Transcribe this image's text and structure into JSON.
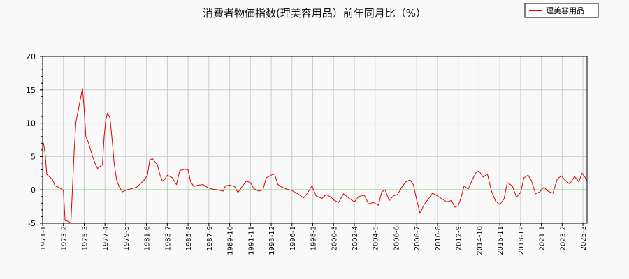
{
  "chart_data": {
    "type": "line",
    "title": "消費者物価指数(理美容用品）前年同月比（%）",
    "xlabel": "",
    "ylabel": "",
    "ylim": [
      -5,
      20
    ],
    "yticks": [
      -5,
      0,
      5,
      10,
      15,
      20
    ],
    "grid": true,
    "legend_position": "top-right",
    "x_tick_labels": [
      "1971-1",
      "1973-2",
      "1975-3",
      "1977-4",
      "1979-5",
      "1981-6",
      "1983-7",
      "1985-8",
      "1987-9",
      "1989-10",
      "1991-11",
      "1993-12",
      "1996-1",
      "1998-2",
      "2000-3",
      "2002-4",
      "2004-5",
      "2006-6",
      "2008-7",
      "2010-8",
      "2012-9",
      "2014-10",
      "2016-11",
      "2018-12",
      "2021-1",
      "2023-2",
      "2025-3"
    ],
    "x_range": [
      "1971-01",
      "2025-08"
    ],
    "reference_line": {
      "y": 0,
      "color": "#00cc00"
    },
    "series": [
      {
        "name": "理美容用品",
        "color": "#dd0000",
        "points": [
          [
            "1971-01",
            6.5
          ],
          [
            "1971-02",
            7.0
          ],
          [
            "1971-04",
            5.4
          ],
          [
            "1971-06",
            2.3
          ],
          [
            "1971-09",
            2.0
          ],
          [
            "1972-01",
            1.5
          ],
          [
            "1972-04",
            0.6
          ],
          [
            "1972-08",
            0.4
          ],
          [
            "1972-12",
            0.1
          ],
          [
            "1973-02",
            -0.1
          ],
          [
            "1973-04",
            -4.6
          ],
          [
            "1973-08",
            -4.7
          ],
          [
            "1973-11",
            -5.0
          ],
          [
            "1974-01",
            0.5
          ],
          [
            "1974-03",
            6.0
          ],
          [
            "1974-05",
            10.2
          ],
          [
            "1974-08",
            12.0
          ],
          [
            "1974-11",
            14.0
          ],
          [
            "1975-01",
            15.2
          ],
          [
            "1975-03",
            12.0
          ],
          [
            "1975-05",
            8.0
          ],
          [
            "1975-07",
            7.5
          ],
          [
            "1975-10",
            6.3
          ],
          [
            "1976-01",
            5.0
          ],
          [
            "1976-04",
            4.0
          ],
          [
            "1976-07",
            3.2
          ],
          [
            "1976-10",
            3.5
          ],
          [
            "1977-01",
            3.8
          ],
          [
            "1977-03",
            8.0
          ],
          [
            "1977-05",
            10.5
          ],
          [
            "1977-07",
            11.5
          ],
          [
            "1977-10",
            10.8
          ],
          [
            "1978-01",
            7.0
          ],
          [
            "1978-03",
            4.0
          ],
          [
            "1978-06",
            1.5
          ],
          [
            "1978-09",
            0.5
          ],
          [
            "1979-01",
            -0.3
          ],
          [
            "1979-06",
            0.0
          ],
          [
            "1980-01",
            0.2
          ],
          [
            "1980-06",
            0.4
          ],
          [
            "1981-01",
            1.2
          ],
          [
            "1981-04",
            1.6
          ],
          [
            "1981-07",
            2.2
          ],
          [
            "1981-10",
            4.5
          ],
          [
            "1982-01",
            4.7
          ],
          [
            "1982-04",
            4.2
          ],
          [
            "1982-07",
            3.8
          ],
          [
            "1982-10",
            2.3
          ],
          [
            "1983-01",
            1.3
          ],
          [
            "1983-04",
            1.6
          ],
          [
            "1983-07",
            2.2
          ],
          [
            "1983-10",
            2.0
          ],
          [
            "1984-01",
            1.8
          ],
          [
            "1984-06",
            0.8
          ],
          [
            "1984-10",
            2.9
          ],
          [
            "1985-04",
            3.1
          ],
          [
            "1985-08",
            3.0
          ],
          [
            "1985-11",
            1.2
          ],
          [
            "1986-03",
            0.5
          ],
          [
            "1986-08",
            0.7
          ],
          [
            "1987-02",
            0.8
          ],
          [
            "1987-08",
            0.3
          ],
          [
            "1988-02",
            0.1
          ],
          [
            "1988-08",
            0.0
          ],
          [
            "1989-02",
            -0.2
          ],
          [
            "1989-05",
            0.6
          ],
          [
            "1989-10",
            0.7
          ],
          [
            "1990-04",
            0.5
          ],
          [
            "1990-08",
            -0.4
          ],
          [
            "1991-01",
            0.5
          ],
          [
            "1991-06",
            1.3
          ],
          [
            "1991-11",
            1.1
          ],
          [
            "1992-03",
            0.2
          ],
          [
            "1992-09",
            -0.2
          ],
          [
            "1993-02",
            0.0
          ],
          [
            "1993-06",
            1.8
          ],
          [
            "1993-12",
            2.2
          ],
          [
            "1994-04",
            2.4
          ],
          [
            "1994-08",
            0.8
          ],
          [
            "1995-01",
            0.4
          ],
          [
            "1995-07",
            0.1
          ],
          [
            "1996-01",
            -0.1
          ],
          [
            "1996-08",
            -0.6
          ],
          [
            "1997-03",
            -1.2
          ],
          [
            "1997-08",
            -0.4
          ],
          [
            "1998-01",
            0.6
          ],
          [
            "1998-06",
            -0.9
          ],
          [
            "1999-01",
            -1.3
          ],
          [
            "1999-06",
            -0.7
          ],
          [
            "1999-12",
            -1.1
          ],
          [
            "2000-03",
            -1.5
          ],
          [
            "2000-09",
            -1.9
          ],
          [
            "2001-03",
            -0.6
          ],
          [
            "2001-09",
            -1.2
          ],
          [
            "2002-04",
            -1.8
          ],
          [
            "2002-09",
            -1.0
          ],
          [
            "2003-04",
            -0.8
          ],
          [
            "2003-09",
            -2.1
          ],
          [
            "2004-03",
            -1.9
          ],
          [
            "2004-09",
            -2.3
          ],
          [
            "2005-01",
            -0.3
          ],
          [
            "2005-05",
            0.0
          ],
          [
            "2005-10",
            -1.6
          ],
          [
            "2006-03",
            -0.9
          ],
          [
            "2006-08",
            -0.7
          ],
          [
            "2007-01",
            0.4
          ],
          [
            "2007-06",
            1.2
          ],
          [
            "2007-11",
            1.5
          ],
          [
            "2008-03",
            0.8
          ],
          [
            "2008-07",
            -1.5
          ],
          [
            "2008-11",
            -3.5
          ],
          [
            "2009-04",
            -2.2
          ],
          [
            "2009-09",
            -1.4
          ],
          [
            "2010-02",
            -0.5
          ],
          [
            "2010-08",
            -0.9
          ],
          [
            "2011-02",
            -1.4
          ],
          [
            "2011-07",
            -1.8
          ],
          [
            "2012-01",
            -1.6
          ],
          [
            "2012-05",
            -2.6
          ],
          [
            "2012-09",
            -2.4
          ],
          [
            "2013-01",
            -0.9
          ],
          [
            "2013-04",
            0.6
          ],
          [
            "2013-09",
            0.1
          ],
          [
            "2014-03",
            1.8
          ],
          [
            "2014-07",
            2.7
          ],
          [
            "2014-10",
            2.8
          ],
          [
            "2015-03",
            1.9
          ],
          [
            "2015-08",
            2.4
          ],
          [
            "2016-01",
            -0.2
          ],
          [
            "2016-06",
            -1.7
          ],
          [
            "2016-11",
            -2.2
          ],
          [
            "2017-04",
            -1.4
          ],
          [
            "2017-08",
            1.1
          ],
          [
            "2018-02",
            0.6
          ],
          [
            "2018-07",
            -1.1
          ],
          [
            "2018-12",
            -0.4
          ],
          [
            "2019-04",
            1.8
          ],
          [
            "2019-09",
            2.2
          ],
          [
            "2020-01",
            1.4
          ],
          [
            "2020-06",
            -0.6
          ],
          [
            "2020-11",
            -0.3
          ],
          [
            "2021-04",
            0.4
          ],
          [
            "2021-09",
            -0.2
          ],
          [
            "2022-03",
            -0.5
          ],
          [
            "2022-08",
            1.6
          ],
          [
            "2023-01",
            2.1
          ],
          [
            "2023-06",
            1.4
          ],
          [
            "2023-11",
            0.9
          ],
          [
            "2024-05",
            2.0
          ],
          [
            "2024-10",
            1.2
          ],
          [
            "2025-02",
            2.5
          ],
          [
            "2025-05",
            2.0
          ],
          [
            "2025-08",
            1.4
          ]
        ]
      }
    ]
  }
}
